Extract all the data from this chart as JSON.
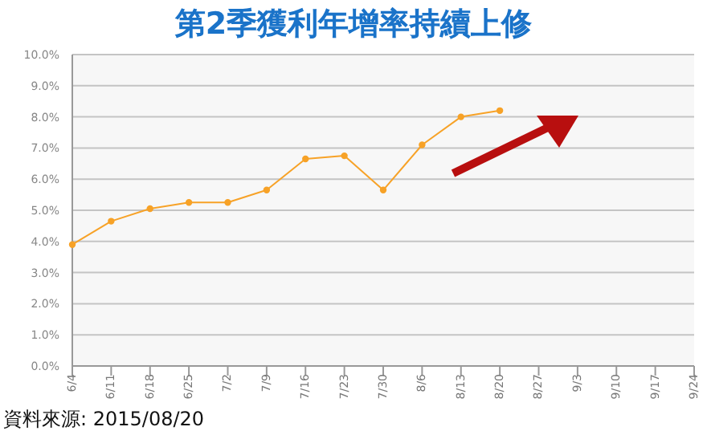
{
  "chart_data": {
    "type": "line",
    "title": "第2季獲利年增率持續上修",
    "categories": [
      "6/4",
      "6/11",
      "6/18",
      "6/25",
      "7/2",
      "7/9",
      "7/16",
      "7/23",
      "7/30",
      "8/6",
      "8/13",
      "8/20",
      "8/27",
      "9/3",
      "9/10",
      "9/17",
      "9/24"
    ],
    "series": [
      {
        "color": "#f7a227",
        "values": [
          3.9,
          4.65,
          5.05,
          5.25,
          5.25,
          5.65,
          6.65,
          6.75,
          5.65,
          7.1,
          8.0,
          8.2,
          null,
          null,
          null,
          null,
          null
        ]
      }
    ],
    "ylim": [
      0,
      10
    ],
    "yticks": [
      {
        "value": 0,
        "label": "0.0%"
      },
      {
        "value": 1,
        "label": "1.0%"
      },
      {
        "value": 2,
        "label": "2.0%"
      },
      {
        "value": 3,
        "label": "3.0%"
      },
      {
        "value": 4,
        "label": "4.0%"
      },
      {
        "value": 5,
        "label": "5.0%"
      },
      {
        "value": 6,
        "label": "6.0%"
      },
      {
        "value": 7,
        "label": "7.0%"
      },
      {
        "value": 8,
        "label": "8.0%"
      },
      {
        "value": 9,
        "label": "9.0%"
      },
      {
        "value": 10,
        "label": "10.0%"
      }
    ],
    "grid": "y",
    "marker": "circle",
    "line_style": "solid",
    "legend": false,
    "annotations": [
      "資料來源: 2015/08/20"
    ]
  }
}
